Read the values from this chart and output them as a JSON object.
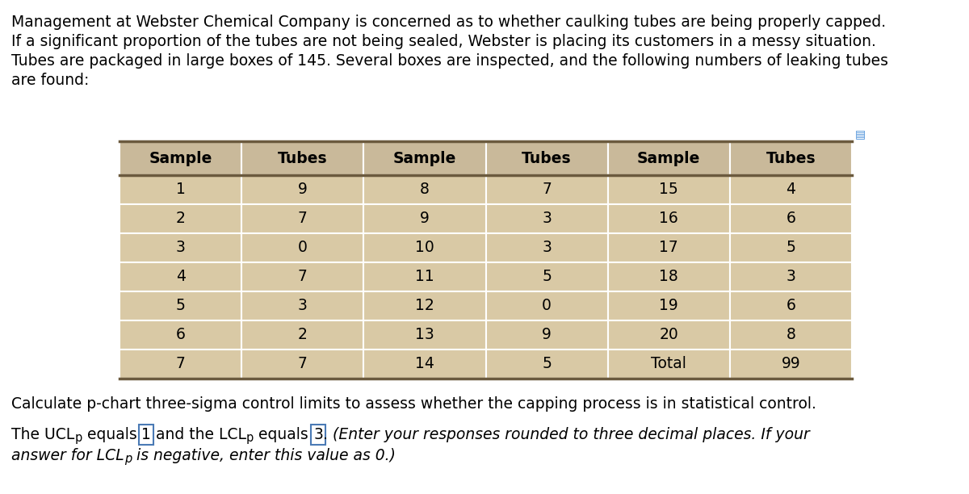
{
  "para_lines": [
    "Management at Webster Chemical Company is concerned as to whether caulking tubes are being properly capped.",
    "If a significant proportion of the tubes are not being sealed, Webster is placing its customers in a messy situation.",
    "Tubes are packaged in large boxes of 145. Several boxes are inspected, and the following numbers of leaking tubes",
    "are found:"
  ],
  "table": {
    "col_headers": [
      "Sample",
      "Tubes",
      "Sample",
      "Tubes",
      "Sample",
      "Tubes"
    ],
    "col1_data": [
      [
        "1",
        "9"
      ],
      [
        "2",
        "7"
      ],
      [
        "3",
        "0"
      ],
      [
        "4",
        "7"
      ],
      [
        "5",
        "3"
      ],
      [
        "6",
        "2"
      ],
      [
        "7",
        "7"
      ]
    ],
    "col2_data": [
      [
        "8",
        "7"
      ],
      [
        "9",
        "3"
      ],
      [
        "10",
        "3"
      ],
      [
        "11",
        "5"
      ],
      [
        "12",
        "0"
      ],
      [
        "13",
        "9"
      ],
      [
        "14",
        "5"
      ]
    ],
    "col3_data": [
      [
        "15",
        "4"
      ],
      [
        "16",
        "6"
      ],
      [
        "17",
        "5"
      ],
      [
        "18",
        "3"
      ],
      [
        "19",
        "6"
      ],
      [
        "20",
        "8"
      ],
      [
        "Total",
        "99"
      ]
    ],
    "header_bg": "#c9b99a",
    "row_bg": "#d9c9a5",
    "border_color": "#ffffff",
    "thick_border_color": "#6b5a3e",
    "header_text_color": "#000000",
    "data_text_color": "#000000"
  },
  "calc_text": "Calculate p-chart three-sigma control limits to assess whether the capping process is in statistical control.",
  "bg_color": "#ffffff",
  "font_size": 13.5,
  "table_font_size": 13.5,
  "icon_color": "#4a90d9",
  "box_edge_color": "#4a7ab5"
}
